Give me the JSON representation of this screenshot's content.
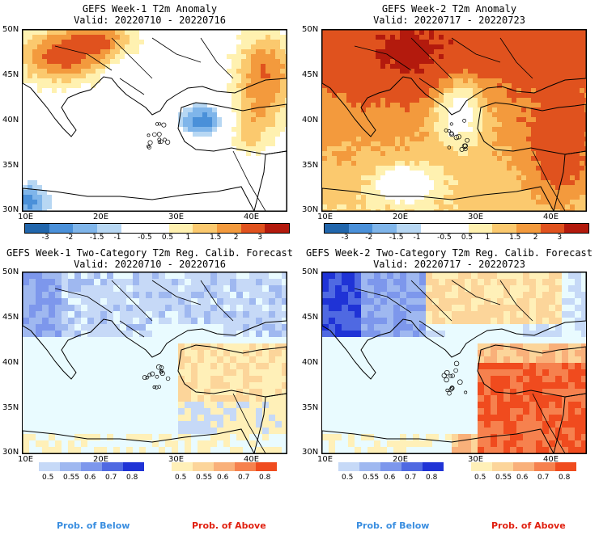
{
  "panels": [
    {
      "title": "GEFS Week-1 T2m Anomaly",
      "valid": "Valid: 20220710 - 20220716",
      "lat_labels": [
        "50N",
        "45N",
        "40N",
        "35N",
        "30N"
      ],
      "lon_labels": [
        "10E",
        "20E",
        "30E",
        "40E"
      ],
      "colorbar_labels": [
        "-3",
        "-2",
        "-1.5",
        "-1",
        "-0.5",
        "0.5",
        "1",
        "1.5",
        "2",
        "3"
      ],
      "colors": [
        "#2166ac",
        "#4a90d9",
        "#7fb5ea",
        "#b7d7f3",
        "#ffffff",
        "#ffffff",
        "#fff1b0",
        "#fbc96e",
        "#f39a3d",
        "#e0521e",
        "#b31a0d"
      ],
      "regime": "mixed"
    },
    {
      "title": "GEFS Week-2 T2m Anomaly",
      "valid": "Valid: 20220717 - 20220723",
      "lat_labels": [
        "50N",
        "45N",
        "40N",
        "35N",
        "30N"
      ],
      "lon_labels": [
        "10E",
        "20E",
        "30E",
        "40E"
      ],
      "colorbar_labels": [
        "-3",
        "-2",
        "-1.5",
        "-1",
        "-0.5",
        "0.5",
        "1",
        "1.5",
        "2",
        "3"
      ],
      "colors": [
        "#2166ac",
        "#4a90d9",
        "#7fb5ea",
        "#b7d7f3",
        "#ffffff",
        "#ffffff",
        "#fff1b0",
        "#fbc96e",
        "#f39a3d",
        "#e0521e",
        "#b31a0d"
      ],
      "regime": "warm"
    },
    {
      "title": "GEFS Week-1 Two-Category T2m Reg. Calib. Forecast",
      "valid": "Valid: 20220710 - 20220716",
      "lat_labels": [
        "50N",
        "45N",
        "40N",
        "35N",
        "30N"
      ],
      "lon_labels": [
        "10E",
        "20E",
        "30E",
        "40E"
      ],
      "regime": "prob1"
    },
    {
      "title": "GEFS Week-2 Two-Category T2m Reg. Calib. Forecast",
      "valid": "Valid: 20220717 - 20220723",
      "lat_labels": [
        "50N",
        "45N",
        "40N",
        "35N",
        "30N"
      ],
      "lon_labels": [
        "10E",
        "20E",
        "30E",
        "40E"
      ],
      "regime": "prob2"
    }
  ],
  "prob_legend": {
    "below_labels": [
      "0.5",
      "0.55",
      "0.6",
      "0.7",
      "0.8"
    ],
    "above_labels": [
      "0.5",
      "0.55",
      "0.6",
      "0.7",
      "0.8"
    ],
    "below_colors": [
      "#c6d9f7",
      "#9fb8f0",
      "#7d97ec",
      "#4f69e2",
      "#1f33d6"
    ],
    "above_colors": [
      "#fff0b8",
      "#fcd59a",
      "#f9b07a",
      "#f6814e",
      "#f04b1e"
    ],
    "below_title": "Prob. of Below",
    "above_title": "Prob. of Above",
    "below_title_color": "#3a8ee0",
    "above_title_color": "#e02010"
  }
}
